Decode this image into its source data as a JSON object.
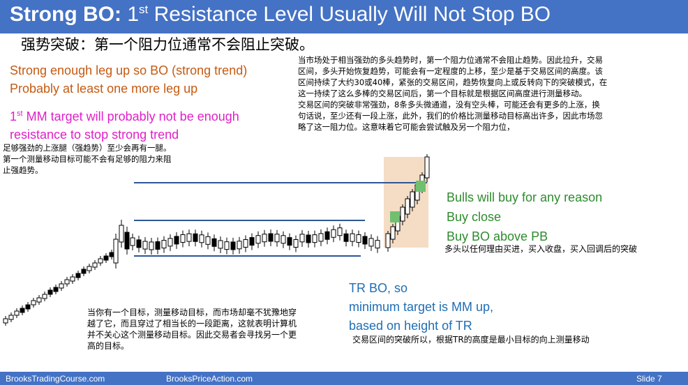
{
  "header": {
    "title_bold": "Strong BO:",
    "title_num": "1",
    "title_sup": "st",
    "title_rest": "Resistance Level Usually Will Not Stop BO",
    "bg_color": "#4472c4"
  },
  "cn_title": "强势突破：第一个阻力位通常不会阻止突破。",
  "orange": {
    "line1": "Strong enough leg up so BO (strong trend)",
    "line2": "Probably at least one more leg up"
  },
  "magenta": {
    "num": "1",
    "sup": "st",
    "line1_rest": "MM target will probably not be enough",
    "line2": "resistance to stop strong trend"
  },
  "cn_left": {
    "line1": "足够强劲的上涨腿（强趋势）至少会再有一腿。",
    "line2": "第一个测量移动目标可能不会有足够的阻力来阻",
    "line3": "止强趋势。"
  },
  "cn_right": {
    "line1": "当市场处于相当强劲的多头趋势时，第一个阻力位通常不会阻止趋势。因此拉升，交易",
    "line2": "区间，多头开始恢复趋势，可能会有一定程度的上移，至少是基于交易区间的高度。该",
    "line3": "区间持续了大约30或40棒，紧张的交易区间，趋势恢复向上或反转向下的突破模式，在",
    "line4": "这一持续了这么多棒的交易区间后，第一个目标就是根据区间高度进行测量移动。",
    "line5": "交易区间的突破非常强劲，8条多头微通道，没有空头棒，可能还会有更多的上涨，换",
    "line6": "句话说，至少还有一段上涨，此外，我们的价格比测量移动目标高出许多，因此市场忽",
    "line7": "略了这一阻力位。这意味着它可能会尝试触及另一个阻力位，"
  },
  "green": {
    "line1": "Bulls will buy for any reason",
    "line2": "Buy close",
    "line3": "Buy BO above PB",
    "cn": "多头以任何理由买进，买入收盘，买入回调后的突破"
  },
  "cn_bottom_left": {
    "line1": "当你有一个目标，测量移动目标，而市场却毫不犹豫地穿",
    "line2": "越了它，而且穿过了相当长的一段距离，这就表明计算机",
    "line3": "并不关心这个测量移动目标。因此交易者会寻找另一个更",
    "line4": "高的目标。"
  },
  "blue": {
    "line1": "TR BO, so",
    "line2": "minimum target is MM up,",
    "line3": "based on height of TR",
    "cn": "交易区间的突破所以，根据TR的高度是最小目标的向上测量移动"
  },
  "footer": {
    "left": "BrooksTradingCourse.com",
    "mid": "BrooksPriceAction.com",
    "right": "Slide  7"
  },
  "colors": {
    "level_line": "#2f5597",
    "highlight_box": "#f5dcc4",
    "green_bar": "#70c070"
  }
}
